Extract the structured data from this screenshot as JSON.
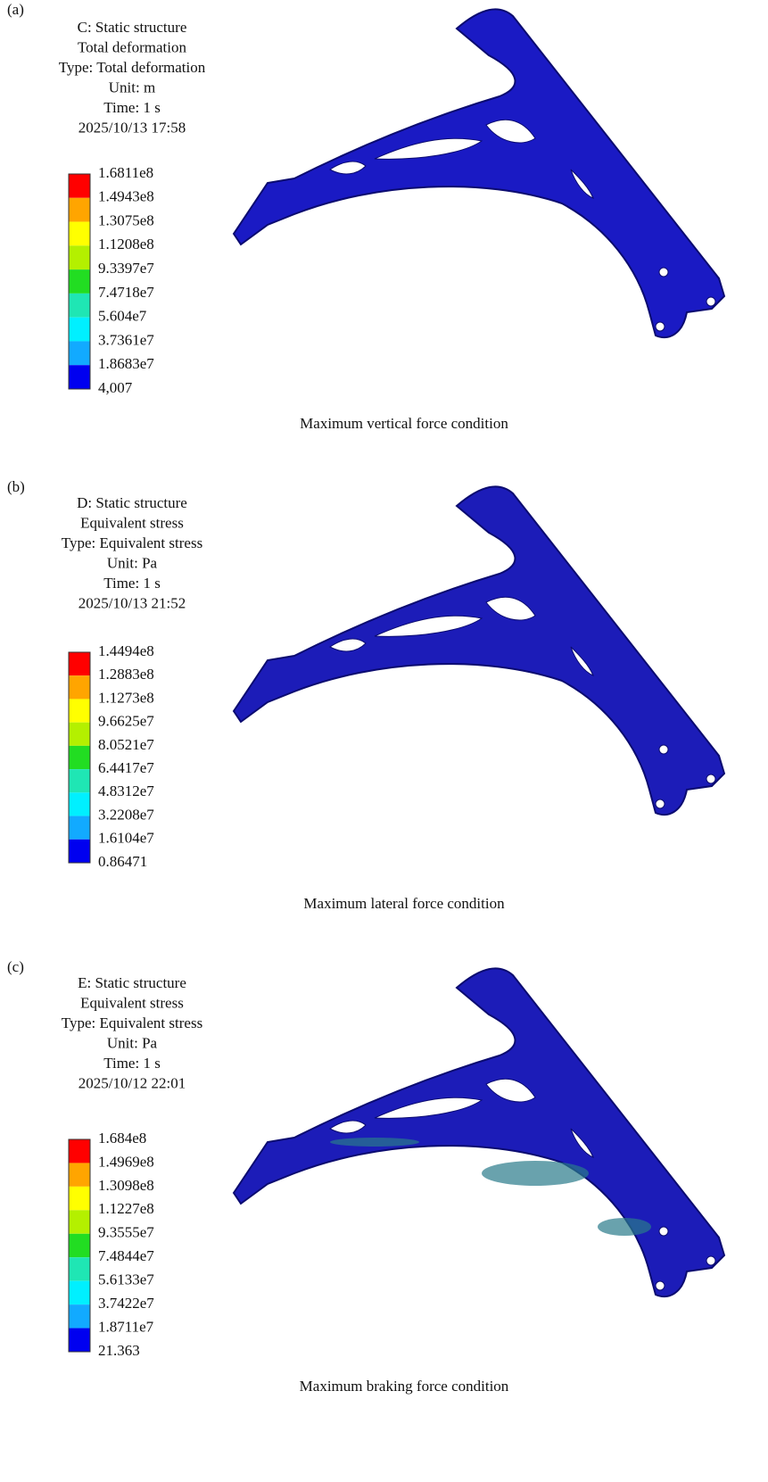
{
  "panels": [
    {
      "label": "(a)",
      "header": [
        "C: Static structure",
        "Total deformation",
        "Type: Total deformation",
        "Unit: m",
        "Time: 1 s",
        "2025/10/13 17:58"
      ],
      "legend": [
        "1.6811e8",
        "1.4943e8",
        "1.3075e8",
        "1.1208e8",
        "9.3397e7",
        "7.4718e7",
        "5.604e7",
        "3.7361e7",
        "1.8683e7",
        "4,007"
      ],
      "caption": "Maximum vertical force condition"
    },
    {
      "label": "(b)",
      "header": [
        "D: Static structure",
        "Equivalent stress",
        "Type: Equivalent stress",
        "Unit: Pa",
        "Time: 1 s",
        "2025/10/13 21:52"
      ],
      "legend": [
        "1.4494e8",
        "1.2883e8",
        "1.1273e8",
        "9.6625e7",
        "8.0521e7",
        "6.4417e7",
        "4.8312e7",
        "3.2208e7",
        "1.6104e7",
        "0.86471"
      ],
      "caption": "Maximum lateral force condition"
    },
    {
      "label": "(c)",
      "header": [
        "E: Static structure",
        "Equivalent stress",
        "Type: Equivalent stress",
        "Unit: Pa",
        "Time: 1 s",
        "2025/10/12 22:01"
      ],
      "legend": [
        "1.684e8",
        "1.4969e8",
        "1.3098e8",
        "1.1227e8",
        "9.3555e7",
        "7.4844e7",
        "5.6133e7",
        "3.7422e7",
        "1.8711e7",
        "21.363"
      ],
      "caption": "Maximum braking force condition"
    }
  ]
}
